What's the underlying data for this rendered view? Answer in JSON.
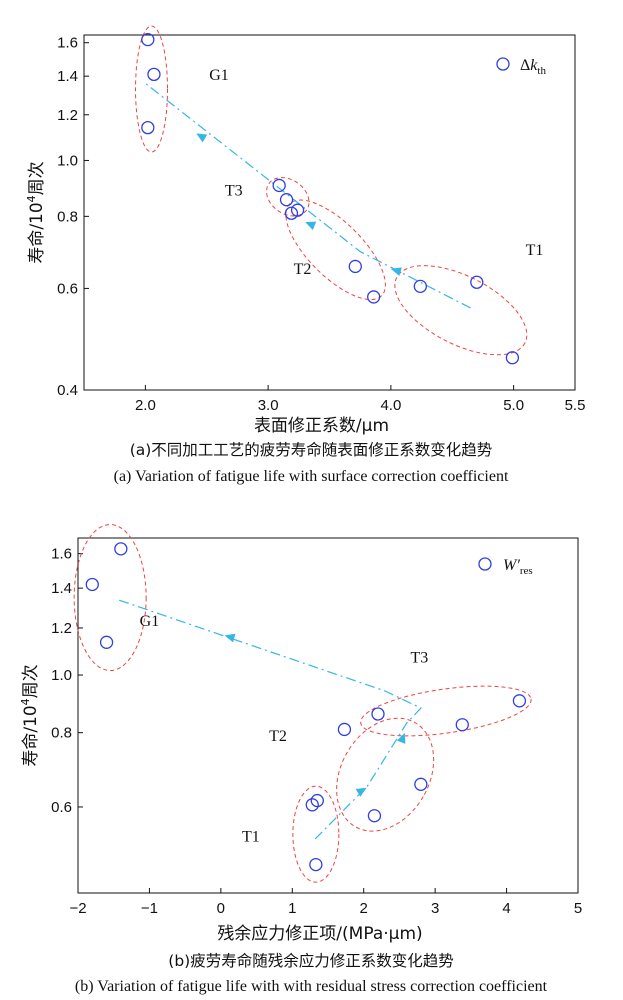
{
  "charts": [
    {
      "type": "scatter",
      "xlabel": "表面修正系数/μm",
      "ylabel_main": "寿命/10",
      "ylabel_sup": "4",
      "ylabel_tail": "周次",
      "xlim": [
        1.5,
        5.5
      ],
      "ylog_range": [
        0.4,
        1.65
      ],
      "xticks": [
        {
          "v": 2.0,
          "label": "2.0"
        },
        {
          "v": 3.0,
          "label": "3.0"
        },
        {
          "v": 4.0,
          "label": "4.0"
        },
        {
          "v": 5.0,
          "label": "5.0"
        },
        {
          "v": 5.5,
          "label": "5.5"
        }
      ],
      "yticks": [
        {
          "v": 1.6,
          "label": "1.6"
        },
        {
          "v": 1.4,
          "label": "1.4"
        },
        {
          "v": 1.2,
          "label": "1.2"
        },
        {
          "v": 1.0,
          "label": "1.0"
        },
        {
          "v": 0.8,
          "label": "0.8"
        },
        {
          "v": 0.6,
          "label": "0.6"
        },
        {
          "v": 0.4,
          "label": "0.4"
        }
      ],
      "legend": {
        "main": "Δ",
        "italic": "k",
        "sub": "th"
      },
      "points": [
        {
          "x": 2.02,
          "y": 1.62
        },
        {
          "x": 2.07,
          "y": 1.41
        },
        {
          "x": 2.02,
          "y": 1.14
        },
        {
          "x": 3.09,
          "y": 0.905
        },
        {
          "x": 3.15,
          "y": 0.855
        },
        {
          "x": 3.19,
          "y": 0.81
        },
        {
          "x": 3.24,
          "y": 0.82
        },
        {
          "x": 3.71,
          "y": 0.655
        },
        {
          "x": 3.86,
          "y": 0.58
        },
        {
          "x": 4.24,
          "y": 0.605
        },
        {
          "x": 4.7,
          "y": 0.615
        },
        {
          "x": 4.99,
          "y": 0.455
        }
      ],
      "groups": [
        {
          "label": "G1",
          "lx": 2.6,
          "ly": 1.38,
          "cx": 2.05,
          "cy": 1.33,
          "rx": 16,
          "ry": 63,
          "rot": 0
        },
        {
          "label": "T3",
          "lx": 2.72,
          "ly": 0.87,
          "cx": 3.16,
          "cy": 0.865,
          "rx": 23,
          "ry": 17,
          "rot": 35
        },
        {
          "label": "T2",
          "lx": 3.28,
          "ly": 0.635,
          "cx": 3.55,
          "cy": 0.7,
          "rx": 65,
          "ry": 27,
          "rot": 45
        },
        {
          "label": "T1",
          "lx": 5.17,
          "ly": 0.685,
          "cx": 4.57,
          "cy": 0.55,
          "rx": 72,
          "ry": 34,
          "rot": 27
        }
      ],
      "trend_path": [
        {
          "x": 4.65,
          "y": 0.555
        },
        {
          "x": 3.75,
          "y": 0.695
        },
        {
          "x": 2.0,
          "y": 1.36
        }
      ],
      "arrows": [
        {
          "x": 4.04,
          "y": 0.645,
          "dir": [
            -1,
            -0.3
          ]
        },
        {
          "x": 3.34,
          "y": 0.776,
          "dir": [
            -1,
            -0.4
          ]
        },
        {
          "x": 2.45,
          "y": 1.103,
          "dir": [
            -1,
            -0.6
          ]
        }
      ],
      "caption_cn": "(a)不同加工工艺的疲劳寿命随表面修正系数变化趋势",
      "caption_en": "(a) Variation of fatigue life with surface correction coefficient"
    },
    {
      "type": "scatter",
      "xlabel": "残余应力修正项/(MPa·μm)",
      "ylabel_main": "寿命/10",
      "ylabel_sup": "4",
      "ylabel_tail": "周次",
      "xlim": [
        -2,
        5
      ],
      "ylog_range": [
        0.43,
        1.7
      ],
      "xticks": [
        {
          "v": -2,
          "label": "−2"
        },
        {
          "v": -1,
          "label": "−1"
        },
        {
          "v": 0,
          "label": "0"
        },
        {
          "v": 1,
          "label": "1"
        },
        {
          "v": 2,
          "label": "2"
        },
        {
          "v": 3,
          "label": "3"
        },
        {
          "v": 4,
          "label": "4"
        },
        {
          "v": 5,
          "label": "5"
        }
      ],
      "yticks": [
        {
          "v": 1.6,
          "label": "1.6"
        },
        {
          "v": 1.4,
          "label": "1.4"
        },
        {
          "v": 1.2,
          "label": "1.2"
        },
        {
          "v": 1.0,
          "label": "1.0"
        },
        {
          "v": 0.8,
          "label": "0.8"
        },
        {
          "v": 0.6,
          "label": "0.6"
        }
      ],
      "legend": {
        "main": "W′",
        "italic": "",
        "sub": "res"
      },
      "points": [
        {
          "x": -1.4,
          "y": 1.63
        },
        {
          "x": -1.8,
          "y": 1.42
        },
        {
          "x": -1.6,
          "y": 1.135
        },
        {
          "x": 4.18,
          "y": 0.905
        },
        {
          "x": 3.38,
          "y": 0.825
        },
        {
          "x": 2.2,
          "y": 0.86
        },
        {
          "x": 1.73,
          "y": 0.81
        },
        {
          "x": 2.8,
          "y": 0.655
        },
        {
          "x": 2.15,
          "y": 0.58
        },
        {
          "x": 1.28,
          "y": 0.605
        },
        {
          "x": 1.35,
          "y": 0.615
        },
        {
          "x": 1.33,
          "y": 0.48
        }
      ],
      "groups": [
        {
          "label": "G1",
          "lx": -1.0,
          "ly": 1.21,
          "cx": -1.55,
          "cy": 1.35,
          "rx": 36,
          "ry": 73,
          "rot": 0
        },
        {
          "label": "T3",
          "lx": 2.78,
          "ly": 1.05,
          "cx": 3.15,
          "cy": 0.87,
          "rx": 86,
          "ry": 22,
          "rot": -8
        },
        {
          "label": "T2",
          "lx": 0.8,
          "ly": 0.775,
          "cx": 2.3,
          "cy": 0.68,
          "rx": 44,
          "ry": 60,
          "rot": 30
        },
        {
          "label": "T1",
          "lx": 0.42,
          "ly": 0.525,
          "cx": 1.33,
          "cy": 0.54,
          "rx": 23,
          "ry": 48,
          "rot": 0
        }
      ],
      "trend_path": [
        {
          "x": 1.32,
          "y": 0.53
        },
        {
          "x": 2.05,
          "y": 0.65
        },
        {
          "x": 2.6,
          "y": 0.83
        },
        {
          "x": 2.8,
          "y": 0.88
        },
        {
          "x": 2.3,
          "y": 0.94
        },
        {
          "x": -1.45,
          "y": 1.34
        }
      ],
      "arrows": [
        {
          "x": 1.98,
          "y": 0.64,
          "dir": [
            1,
            -0.6
          ]
        },
        {
          "x": 2.55,
          "y": 0.785,
          "dir": [
            0.4,
            -1
          ]
        },
        {
          "x": 0.12,
          "y": 1.16,
          "dir": [
            -1,
            -0.28
          ]
        }
      ],
      "caption_cn": "(b)疲劳寿命随残余应力修正系数变化趋势",
      "caption_en": "(b) Variation of fatigue life with with residual stress correction coefficient"
    }
  ],
  "chart_data": [
    {
      "type": "scatter",
      "xlabel": "表面修正系数/μm",
      "ylabel": "寿命/10⁴周次",
      "ylog": true,
      "series": [
        {
          "name": "Δk_th",
          "x": [
            2.02,
            2.07,
            2.02,
            3.09,
            3.15,
            3.19,
            3.24,
            3.71,
            3.86,
            4.24,
            4.7,
            4.99
          ],
          "y": [
            1.62,
            1.41,
            1.14,
            0.905,
            0.855,
            0.81,
            0.82,
            0.655,
            0.58,
            0.605,
            0.615,
            0.455
          ]
        }
      ],
      "groups": [
        "G1",
        "T3",
        "T2",
        "T1"
      ]
    },
    {
      "type": "scatter",
      "xlabel": "残余应力修正项/(MPa·μm)",
      "ylabel": "寿命/10⁴周次",
      "ylog": true,
      "series": [
        {
          "name": "W′res",
          "x": [
            -1.4,
            -1.8,
            -1.6,
            4.18,
            3.38,
            2.2,
            1.73,
            2.8,
            2.15,
            1.28,
            1.35,
            1.33
          ],
          "y": [
            1.63,
            1.42,
            1.135,
            0.905,
            0.825,
            0.86,
            0.81,
            0.655,
            0.58,
            0.605,
            0.615,
            0.48
          ]
        }
      ],
      "groups": [
        "G1",
        "T3",
        "T2",
        "T1"
      ]
    }
  ]
}
